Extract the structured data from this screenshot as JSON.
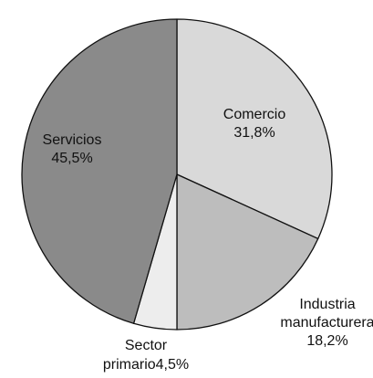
{
  "chart_data": {
    "type": "pie",
    "title": "",
    "start_angle_deg": 0,
    "direction": "clockwise",
    "legend": "none",
    "slices": [
      {
        "label": "Comercio",
        "value": 31.8,
        "value_text": "31,8%",
        "color": "#d9d9d9",
        "label_lines": [
          "Comercio",
          "31,8%"
        ]
      },
      {
        "label": "Industria manufacturera",
        "value": 18.2,
        "value_text": "18,2%",
        "color": "#bdbdbd",
        "label_lines": [
          "Industria",
          "manufacturera",
          "18,2%"
        ]
      },
      {
        "label": "Sector primario",
        "value": 4.5,
        "value_text": "4,5%",
        "color": "#ededed",
        "label_lines": [
          "Sector",
          "primario4,5%"
        ]
      },
      {
        "label": "Servicios",
        "value": 45.5,
        "value_text": "45,5%",
        "color": "#8a8a8a",
        "label_lines": [
          "Servicios",
          "45,5%"
        ]
      }
    ]
  }
}
